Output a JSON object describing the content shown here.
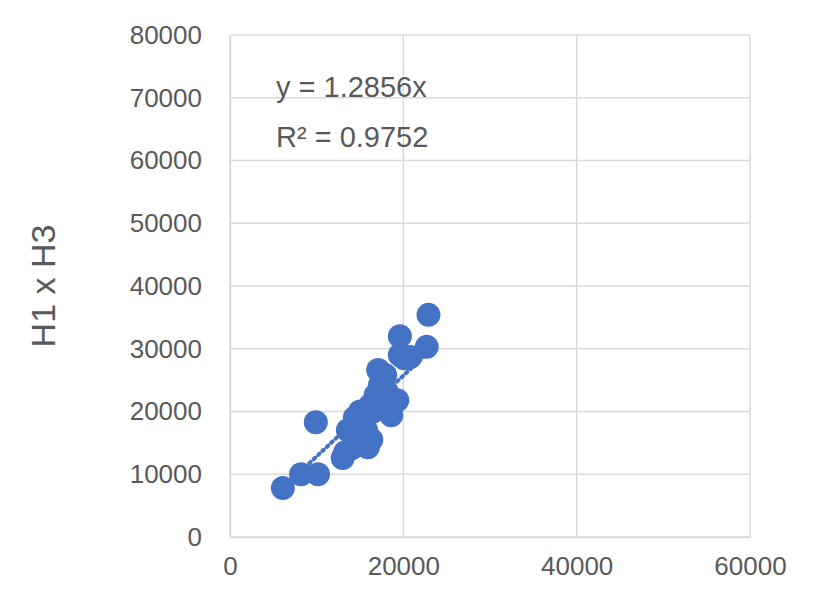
{
  "chart_data": {
    "type": "scatter",
    "y_label": "H1 x H3",
    "annotations": [
      "y = 1.2856x",
      "R² = 0.9752"
    ],
    "xlim": [
      0,
      60000
    ],
    "xticks": [
      0,
      20000,
      40000,
      60000
    ],
    "ylim": [
      0,
      80000
    ],
    "yticks": [
      0,
      10000,
      20000,
      30000,
      40000,
      50000,
      60000,
      70000,
      80000
    ],
    "grid": true,
    "series": [
      {
        "type": "scatter",
        "color": "#4472c4",
        "marker": "circle",
        "x": [
          6100,
          8200,
          9900,
          10150,
          13000,
          13300,
          13600,
          14100,
          14400,
          15000,
          15200,
          15500,
          15700,
          15900,
          16300,
          16500,
          16800,
          17100,
          17300,
          17900,
          18100,
          18500,
          18600,
          18900,
          19300,
          19600,
          19600,
          20100,
          20800,
          22700,
          22900,
          16200
        ],
        "values": [
          7800,
          10000,
          18300,
          10000,
          12600,
          13500,
          17000,
          14200,
          19000,
          20000,
          17800,
          15800,
          17000,
          14300,
          15500,
          20000,
          22600,
          26600,
          24200,
          25800,
          23100,
          20000,
          19400,
          21500,
          21800,
          32000,
          29000,
          28500,
          28700,
          30300,
          35400,
          21000
        ]
      },
      {
        "type": "line",
        "color": "#4472c4",
        "line_style": "dotted",
        "x": [
          6100,
          22900
        ],
        "values": [
          7840,
          29440
        ]
      }
    ]
  }
}
